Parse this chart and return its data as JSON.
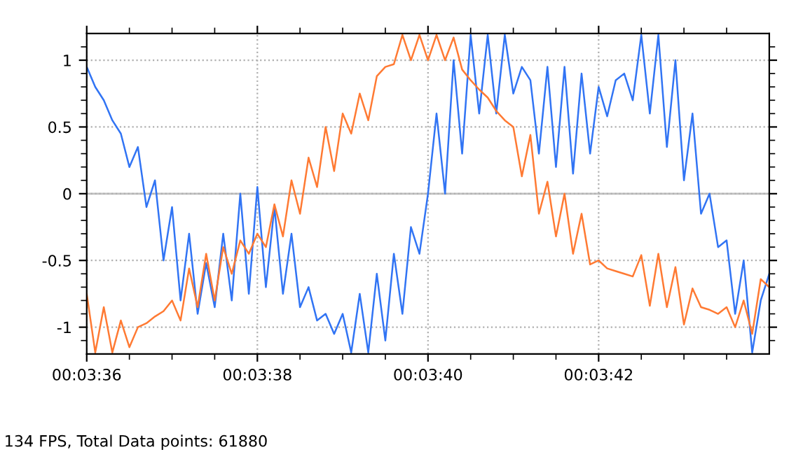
{
  "chart_data": {
    "type": "line",
    "annotations": [
      "134 FPS, Total Data points: 61880"
    ],
    "xlim": [
      216,
      224
    ],
    "ylim": [
      -1.2,
      1.2
    ],
    "xticks": [
      {
        "value": 216,
        "label": "00:03:36"
      },
      {
        "value": 216.5,
        "label": null
      },
      {
        "value": 217,
        "label": null
      },
      {
        "value": 217.5,
        "label": null
      },
      {
        "value": 218,
        "label": "00:03:38"
      },
      {
        "value": 218.5,
        "label": null
      },
      {
        "value": 219,
        "label": null
      },
      {
        "value": 219.5,
        "label": null
      },
      {
        "value": 220,
        "label": "00:03:40"
      },
      {
        "value": 220.5,
        "label": null
      },
      {
        "value": 221,
        "label": null
      },
      {
        "value": 221.5,
        "label": null
      },
      {
        "value": 222,
        "label": "00:03:42"
      },
      {
        "value": 222.5,
        "label": null
      },
      {
        "value": 223,
        "label": null
      },
      {
        "value": 223.5,
        "label": null
      }
    ],
    "yticks": [
      -1,
      -0.5,
      0,
      0.5,
      1,
      {
        "value": -1.1,
        "label": null
      },
      {
        "value": -0.9,
        "label": null
      },
      {
        "value": -0.8,
        "label": null
      },
      {
        "value": -0.7,
        "label": null
      },
      {
        "value": -0.6,
        "label": null
      },
      {
        "value": -0.4,
        "label": null
      },
      {
        "value": -0.3,
        "label": null
      },
      {
        "value": -0.2,
        "label": null
      },
      {
        "value": -0.1,
        "label": null
      },
      {
        "value": 0.1,
        "label": null
      },
      {
        "value": 0.2,
        "label": null
      },
      {
        "value": 0.3,
        "label": null
      },
      {
        "value": 0.4,
        "label": null
      },
      {
        "value": 0.6,
        "label": null
      },
      {
        "value": 0.7,
        "label": null
      },
      {
        "value": 0.8,
        "label": null
      },
      {
        "value": 0.9,
        "label": null
      },
      {
        "value": 1.1,
        "label": null
      }
    ],
    "grid": true,
    "marker": "none",
    "line_style": "solid",
    "ref_lines": [
      {
        "axis": "y",
        "value": 0,
        "color": "#c0c0c0",
        "line_style": "solid"
      }
    ],
    "x": [
      216.0,
      216.1,
      216.2,
      216.3,
      216.4,
      216.5,
      216.6,
      216.7,
      216.8,
      216.9,
      217.0,
      217.1,
      217.2,
      217.3,
      217.4,
      217.5,
      217.6,
      217.7,
      217.8,
      217.9,
      218.0,
      218.1,
      218.2,
      218.3,
      218.4,
      218.5,
      218.6,
      218.7,
      218.8,
      218.9,
      219.0,
      219.1,
      219.2,
      219.3,
      219.4,
      219.5,
      219.6,
      219.7,
      219.8,
      219.9,
      220.0,
      220.1,
      220.2,
      220.3,
      220.4,
      220.5,
      220.6,
      220.7,
      220.8,
      220.9,
      221.0,
      221.1,
      221.2,
      221.3,
      221.4,
      221.5,
      221.6,
      221.7,
      221.8,
      221.9,
      222.0,
      222.1,
      222.2,
      222.3,
      222.4,
      222.5,
      222.6,
      222.7,
      222.8,
      222.9,
      223.0,
      223.1,
      223.2,
      223.3,
      223.4,
      223.5,
      223.6,
      223.7,
      223.8,
      223.9,
      224.0
    ],
    "series": [
      {
        "color": "#3174f4",
        "values": [
          0.95,
          0.8,
          0.7,
          0.55,
          0.45,
          0.2,
          0.35,
          -0.1,
          0.1,
          -0.5,
          -0.1,
          -0.8,
          -0.3,
          -0.9,
          -0.52,
          -0.85,
          -0.3,
          -0.8,
          0.0,
          -0.75,
          0.05,
          -0.7,
          -0.1,
          -0.75,
          -0.3,
          -0.85,
          -0.7,
          -0.95,
          -0.9,
          -1.05,
          -0.9,
          -1.19,
          -0.75,
          -1.19,
          -0.6,
          -1.1,
          -0.45,
          -0.9,
          -0.25,
          -0.45,
          0.0,
          0.6,
          0.0,
          1.0,
          0.3,
          1.19,
          0.6,
          1.19,
          0.6,
          1.19,
          0.75,
          0.95,
          0.85,
          0.3,
          0.95,
          0.2,
          0.95,
          0.15,
          0.9,
          0.3,
          0.8,
          0.58,
          0.85,
          0.9,
          0.7,
          1.19,
          0.6,
          1.19,
          0.35,
          1.0,
          0.1,
          0.6,
          -0.15,
          0.0,
          -0.4,
          -0.35,
          -0.9,
          -0.5,
          -1.19,
          -0.8,
          -0.6
        ]
      },
      {
        "color": "#ff7a33",
        "values": [
          -0.75,
          -1.19,
          -0.85,
          -1.19,
          -0.95,
          -1.15,
          -1.0,
          -0.97,
          -0.92,
          -0.88,
          -0.8,
          -0.95,
          -0.56,
          -0.85,
          -0.45,
          -0.8,
          -0.4,
          -0.6,
          -0.35,
          -0.45,
          -0.3,
          -0.4,
          -0.08,
          -0.32,
          0.1,
          -0.15,
          0.27,
          0.05,
          0.5,
          0.17,
          0.6,
          0.45,
          0.75,
          0.55,
          0.88,
          0.95,
          0.97,
          1.19,
          1.0,
          1.19,
          1.0,
          1.19,
          1.0,
          1.17,
          0.93,
          0.85,
          0.78,
          0.72,
          0.62,
          0.55,
          0.5,
          0.13,
          0.44,
          -0.15,
          0.09,
          -0.32,
          0.0,
          -0.45,
          -0.15,
          -0.53,
          -0.5,
          -0.56,
          -0.58,
          -0.6,
          -0.62,
          -0.46,
          -0.84,
          -0.45,
          -0.85,
          -0.55,
          -0.98,
          -0.71,
          -0.85,
          -0.87,
          -0.9,
          -0.85,
          -1.0,
          -0.8,
          -1.05,
          -0.64,
          -0.7
        ]
      }
    ]
  }
}
